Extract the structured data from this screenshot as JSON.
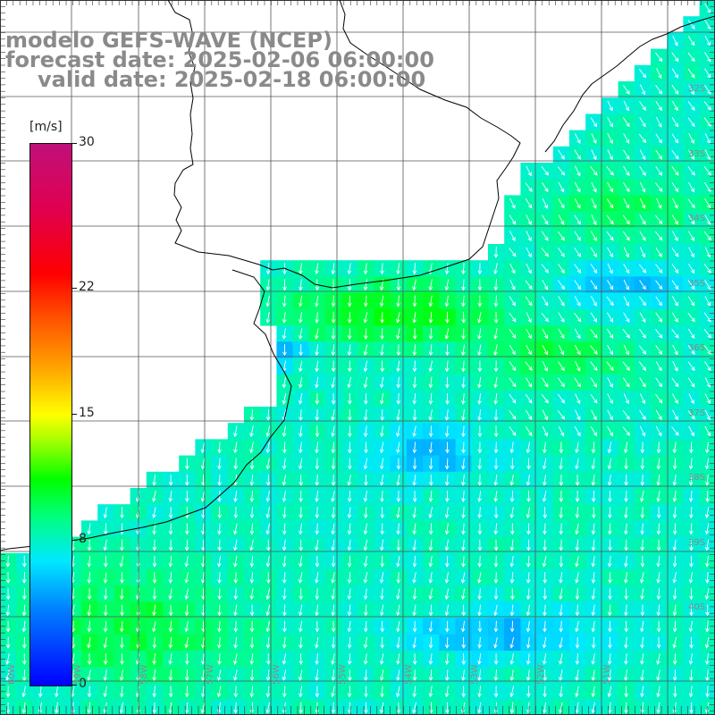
{
  "title": {
    "line1": "modelo GEFS-WAVE (NCEP)",
    "line2": "forecast date: 2025-02-06 06:00:00",
    "line3": "valid date: 2025-02-18 06:00:00"
  },
  "colorbar": {
    "unit": "[m/s]",
    "min": 0,
    "max": 30,
    "ticks": [
      "30",
      "22",
      "15",
      "8",
      "0"
    ],
    "tick_values": [
      30,
      22,
      15,
      8,
      0
    ]
  },
  "map_labels": {
    "lat": [
      "32S",
      "33S",
      "34S",
      "35S",
      "36S",
      "37S",
      "38S",
      "39S",
      "40S"
    ],
    "lon": [
      "60W",
      "59W",
      "58W",
      "57W",
      "56W",
      "55W",
      "54W",
      "53W",
      "52W",
      "51W"
    ]
  },
  "colors": {
    "land": "#ffffff",
    "coastline": "#000000",
    "grid": "#555555",
    "arrows": "#ffffff",
    "title_text": "#8a8a8a"
  }
}
